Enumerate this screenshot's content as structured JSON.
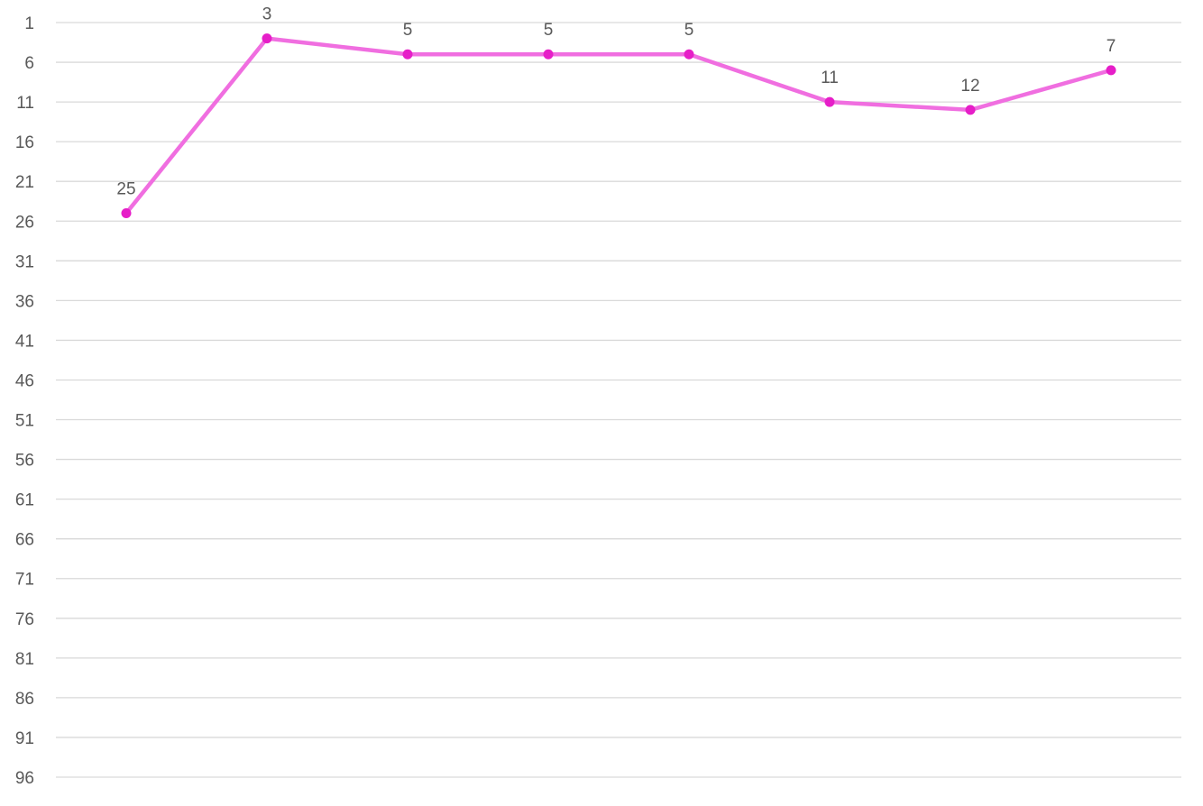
{
  "chart_data": {
    "type": "line",
    "categories": [
      "",
      "",
      "",
      "",
      "",
      "",
      "",
      ""
    ],
    "series": [
      {
        "values": [
          25,
          3,
          5,
          5,
          5,
          11,
          12,
          7
        ],
        "color": "#f06ee0",
        "marker_color": "#e61ec8"
      }
    ],
    "data_labels": [
      "25",
      "3",
      "5",
      "5",
      "5",
      "11",
      "12",
      "7"
    ],
    "y_ticks": [
      "1",
      "6",
      "11",
      "16",
      "21",
      "26",
      "31",
      "36",
      "41",
      "46",
      "51",
      "56",
      "61",
      "66",
      "71",
      "76",
      "81",
      "86",
      "91",
      "96"
    ],
    "ylim": [
      1,
      96
    ],
    "y_reversed": true,
    "grid": true,
    "title": "",
    "xlabel": "",
    "ylabel": ""
  }
}
